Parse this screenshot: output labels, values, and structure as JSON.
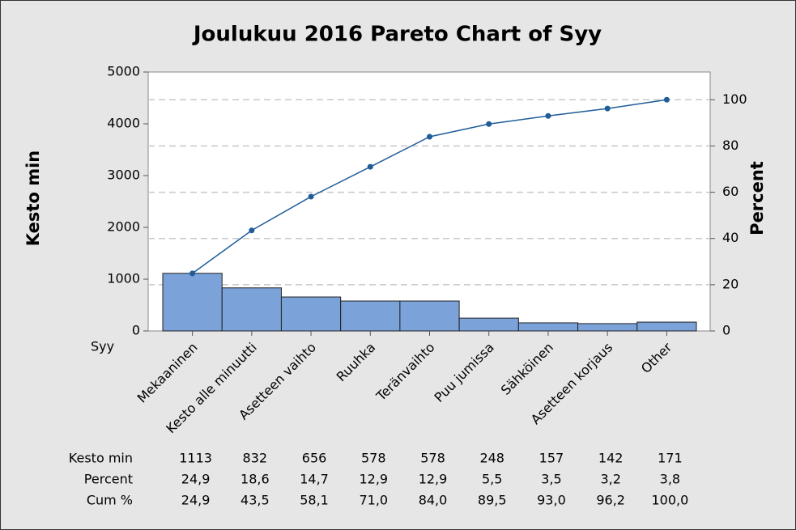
{
  "chart_data": {
    "type": "pareto",
    "title": "Joulukuu 2016 Pareto Chart of Syy",
    "xlabel": "Syy",
    "ylabel": "Kesto min",
    "y2label": "Percent",
    "categories": [
      "Mekaaninen",
      "Kesto alle minuutti",
      "Asetteen vaihto",
      "Ruuhka",
      "Teränvaihto",
      "Puu jumissa",
      "Sähköinen",
      "Asetteen korjaus",
      "Other"
    ],
    "series": [
      {
        "name": "Kesto min",
        "color": "#7ba2d9",
        "values": [
          1113,
          832,
          656,
          578,
          578,
          248,
          157,
          142,
          171
        ]
      },
      {
        "name": "Cum %",
        "color": "#1f5c99",
        "axis": "y2",
        "values": [
          24.9,
          43.5,
          58.1,
          71.0,
          84.0,
          89.5,
          93.0,
          96.2,
          100.0
        ],
        "value_labels": [
          "24,9",
          "43,5",
          "58,1",
          "71,0",
          "84,0",
          "89,5",
          "93,0",
          "96,2",
          "100,0"
        ]
      }
    ],
    "percent_row": {
      "name": "Percent",
      "labels": [
        "24,9",
        "18,6",
        "14,7",
        "12,9",
        "12,9",
        "5,5",
        "3,5",
        "3,2",
        "3,8"
      ]
    },
    "ylim": [
      0,
      5000
    ],
    "yticks": [
      0,
      1000,
      2000,
      3000,
      4000,
      5000
    ],
    "y2lim": [
      0,
      112
    ],
    "y2ticks": [
      0,
      20,
      40,
      60,
      80,
      100
    ],
    "grid": true
  }
}
